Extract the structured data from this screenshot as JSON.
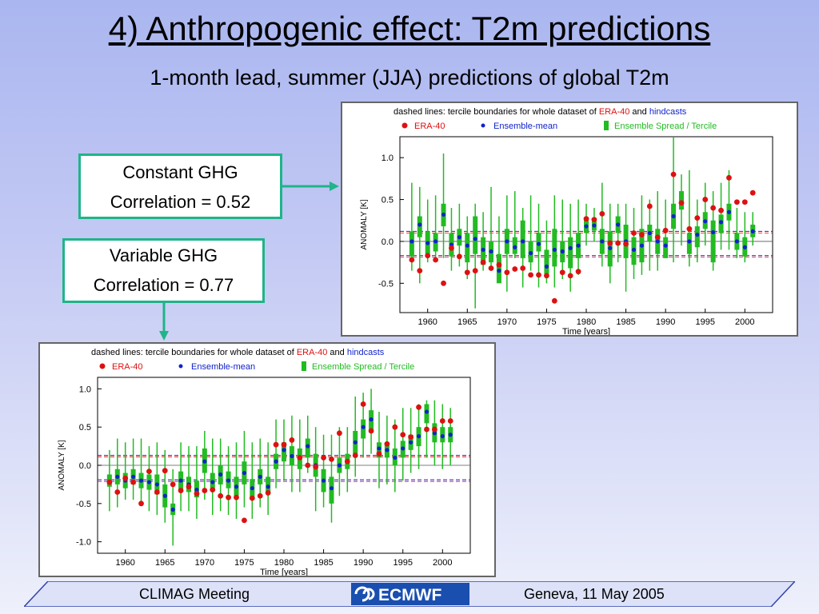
{
  "slide": {
    "title": "4) Anthropogenic effect: T2m predictions",
    "subtitle": "1-month lead, summer (JJA) predictions of global T2m",
    "box_constant": {
      "line1": "Constant GHG",
      "line2": "Correlation = 0.52"
    },
    "box_variable": {
      "line1": "Variable GHG",
      "line2": "Correlation = 0.77"
    },
    "footer": {
      "left": "CLIMAG Meeting",
      "logo": "ECMWF",
      "right": "Geneva, 11 May 2005"
    }
  },
  "colors": {
    "accent_teal": "#1fb489",
    "era40": "#dd1111",
    "ensemble_mean": "#1122cc",
    "spread": "#22bb22"
  },
  "chart_data": [
    {
      "type": "scatter",
      "header_prefix": "dashed lines: tercile boundaries for whole dataset of",
      "header_era": "ERA-40",
      "header_and": "and",
      "header_hindcasts": "hindcasts",
      "legend": [
        "ERA-40",
        "Ensemble-mean",
        "Ensemble Spread / Tercile"
      ],
      "xlabel": "Time [years]",
      "ylabel": "ANOMALY [K]",
      "xlim": [
        1956.5,
        2003.5
      ],
      "ylim": [
        -0.85,
        1.25
      ],
      "yticks": [
        -0.5,
        0.0,
        0.5,
        1.0
      ],
      "ytick_labels": [
        "-0.5",
        "0.0",
        "0.5",
        "1.0"
      ],
      "xticks": [
        1960,
        1965,
        1970,
        1975,
        1980,
        1985,
        1990,
        1995,
        2000
      ],
      "tercile_lines": [
        0.12,
        -0.17
      ],
      "series": [
        {
          "name": "ERA-40",
          "x": [
            1958,
            1959,
            1960,
            1961,
            1962,
            1963,
            1964,
            1965,
            1966,
            1967,
            1968,
            1969,
            1970,
            1971,
            1972,
            1973,
            1974,
            1975,
            1976,
            1977,
            1978,
            1979,
            1980,
            1981,
            1982,
            1983,
            1984,
            1985,
            1986,
            1987,
            1988,
            1989,
            1990,
            1991,
            1992,
            1993,
            1994,
            1995,
            1996,
            1997,
            1998,
            1999,
            2000,
            2001
          ],
          "y": [
            -0.22,
            -0.35,
            -0.17,
            -0.22,
            -0.5,
            -0.08,
            -0.18,
            -0.37,
            -0.35,
            -0.25,
            -0.32,
            -0.28,
            -0.37,
            -0.33,
            -0.32,
            -0.4,
            -0.4,
            -0.41,
            -0.71,
            -0.37,
            -0.41,
            -0.36,
            0.27,
            0.26,
            0.33,
            -0.02,
            -0.02,
            -0.03,
            0.1,
            0.08,
            0.42,
            0.05,
            0.13,
            0.8,
            0.46,
            0.15,
            0.28,
            0.5,
            0.4,
            0.37,
            0.76,
            0.47,
            0.47,
            0.58
          ]
        },
        {
          "name": "Ensemble-mean",
          "x": [
            1958,
            1959,
            1960,
            1961,
            1962,
            1963,
            1964,
            1965,
            1966,
            1967,
            1968,
            1969,
            1970,
            1971,
            1972,
            1973,
            1974,
            1975,
            1976,
            1977,
            1978,
            1979,
            1980,
            1981,
            1982,
            1983,
            1984,
            1985,
            1986,
            1987,
            1988,
            1989,
            1990,
            1991,
            1992,
            1993,
            1994,
            1995,
            1996,
            1997,
            1998,
            1999,
            2000,
            2001
          ],
          "y": [
            0.0,
            0.2,
            -0.02,
            0.0,
            0.32,
            -0.04,
            0.05,
            -0.05,
            0.03,
            -0.1,
            -0.12,
            -0.35,
            0.0,
            -0.07,
            0.0,
            -0.14,
            -0.03,
            -0.3,
            -0.1,
            -0.12,
            -0.08,
            -0.05,
            0.18,
            0.19,
            0.0,
            -0.08,
            0.2,
            0.0,
            -0.1,
            -0.05,
            0.1,
            0.0,
            -0.05,
            0.3,
            0.46,
            0.0,
            0.08,
            0.24,
            0.11,
            0.23,
            0.35,
            0.0,
            -0.07,
            0.12
          ]
        },
        {
          "name": "Ensemble Spread / Tercile",
          "x": [
            1958,
            1959,
            1960,
            1961,
            1962,
            1963,
            1964,
            1965,
            1966,
            1967,
            1968,
            1969,
            1970,
            1971,
            1972,
            1973,
            1974,
            1975,
            1976,
            1977,
            1978,
            1979,
            1980,
            1981,
            1982,
            1983,
            1984,
            1985,
            1986,
            1987,
            1988,
            1989,
            1990,
            1991,
            1992,
            1993,
            1994,
            1995,
            1996,
            1997,
            1998,
            1999,
            2000,
            2001
          ],
          "low": [
            -0.35,
            -0.5,
            -0.25,
            -0.2,
            -0.2,
            -0.35,
            -0.3,
            -0.45,
            -0.8,
            -0.35,
            -0.35,
            -0.45,
            -0.6,
            -0.2,
            -0.55,
            -0.35,
            -0.55,
            -0.5,
            -0.55,
            -0.45,
            -0.6,
            -0.4,
            -0.05,
            0.0,
            -0.3,
            -0.5,
            -0.25,
            -0.6,
            -0.45,
            -0.4,
            -0.35,
            -0.35,
            -0.1,
            -0.25,
            -0.05,
            -0.3,
            -0.25,
            -0.05,
            -0.35,
            -0.1,
            -0.1,
            -0.2,
            -0.25,
            -0.05
          ],
          "q_low": [
            -0.18,
            0.05,
            -0.15,
            -0.12,
            0.18,
            -0.18,
            -0.05,
            -0.25,
            -0.15,
            -0.28,
            -0.25,
            -0.5,
            -0.15,
            -0.15,
            -0.2,
            -0.25,
            -0.12,
            -0.4,
            -0.3,
            -0.25,
            -0.32,
            -0.2,
            0.1,
            0.13,
            -0.15,
            -0.3,
            0.1,
            -0.2,
            -0.28,
            -0.25,
            0.0,
            -0.15,
            -0.2,
            0.15,
            0.38,
            -0.15,
            -0.07,
            0.15,
            -0.25,
            0.1,
            0.25,
            -0.1,
            -0.18,
            0.05
          ],
          "q_high": [
            0.12,
            0.3,
            0.12,
            0.1,
            0.45,
            0.1,
            0.15,
            0.1,
            0.3,
            0.05,
            0.0,
            -0.15,
            0.15,
            0.05,
            0.25,
            0.0,
            0.1,
            -0.1,
            0.15,
            0.0,
            0.05,
            0.1,
            0.28,
            0.28,
            0.15,
            0.12,
            0.3,
            0.2,
            0.05,
            0.15,
            0.2,
            0.15,
            0.05,
            0.45,
            0.6,
            0.1,
            0.18,
            0.35,
            0.25,
            0.32,
            0.45,
            0.1,
            0.05,
            0.2
          ],
          "high": [
            0.7,
            0.65,
            0.5,
            0.55,
            1.05,
            0.4,
            0.45,
            0.3,
            0.45,
            0.35,
            0.65,
            0.3,
            0.55,
            0.6,
            0.4,
            0.55,
            0.45,
            0.25,
            0.55,
            0.5,
            0.45,
            0.5,
            0.45,
            0.4,
            0.7,
            0.45,
            0.45,
            0.45,
            0.4,
            0.55,
            0.5,
            0.6,
            0.5,
            1.25,
            0.8,
            0.85,
            0.5,
            0.7,
            0.6,
            0.7,
            0.85,
            0.4,
            0.35,
            0.35
          ]
        }
      ]
    },
    {
      "type": "scatter",
      "header_prefix": "dashed lines: tercile boundaries for whole dataset of",
      "header_era": "ERA-40",
      "header_and": "and",
      "header_hindcasts": "hindcasts",
      "legend": [
        "ERA-40",
        "Ensemble-mean",
        "Ensemble Spread / Tercile"
      ],
      "xlabel": "Time [years]",
      "ylabel": "ANOMALY [K]",
      "xlim": [
        1956.5,
        2003.5
      ],
      "ylim": [
        -1.15,
        1.15
      ],
      "yticks": [
        -1.0,
        -0.5,
        0.0,
        0.5,
        1.0
      ],
      "ytick_labels": [
        "-1.0",
        "-0.5",
        "0.0",
        "0.5",
        "1.0"
      ],
      "xticks": [
        1960,
        1965,
        1970,
        1975,
        1980,
        1985,
        1990,
        1995,
        2000
      ],
      "tercile_lines": [
        0.13,
        -0.19
      ],
      "series": [
        {
          "name": "ERA-40",
          "x": [
            1958,
            1959,
            1960,
            1961,
            1962,
            1963,
            1964,
            1965,
            1966,
            1967,
            1968,
            1969,
            1970,
            1971,
            1972,
            1973,
            1974,
            1975,
            1976,
            1977,
            1978,
            1979,
            1980,
            1981,
            1982,
            1983,
            1984,
            1985,
            1986,
            1987,
            1988,
            1989,
            1990,
            1991,
            1992,
            1993,
            1994,
            1995,
            1996,
            1997,
            1998,
            1999,
            2000,
            2001
          ],
          "y": [
            -0.22,
            -0.35,
            -0.17,
            -0.22,
            -0.5,
            -0.08,
            -0.35,
            -0.07,
            -0.25,
            -0.33,
            -0.28,
            -0.37,
            -0.33,
            -0.32,
            -0.4,
            -0.42,
            -0.42,
            -0.72,
            -0.43,
            -0.4,
            -0.36,
            0.27,
            0.27,
            0.33,
            0.1,
            0.0,
            -0.02,
            0.1,
            0.08,
            0.42,
            0.05,
            0.13,
            0.8,
            0.45,
            0.15,
            0.28,
            0.5,
            0.4,
            0.37,
            0.76,
            0.47,
            0.47,
            0.58,
            0.58
          ]
        },
        {
          "name": "Ensemble-mean",
          "x": [
            1958,
            1959,
            1960,
            1961,
            1962,
            1963,
            1964,
            1965,
            1966,
            1967,
            1968,
            1969,
            1970,
            1971,
            1972,
            1973,
            1974,
            1975,
            1976,
            1977,
            1978,
            1979,
            1980,
            1981,
            1982,
            1983,
            1984,
            1985,
            1986,
            1987,
            1988,
            1989,
            1990,
            1991,
            1992,
            1993,
            1994,
            1995,
            1996,
            1997,
            1998,
            1999,
            2000,
            2001
          ],
          "y": [
            -0.22,
            -0.15,
            -0.2,
            -0.15,
            -0.2,
            -0.22,
            -0.25,
            -0.4,
            -0.58,
            -0.2,
            -0.25,
            -0.32,
            0.05,
            -0.22,
            -0.12,
            -0.2,
            -0.28,
            -0.1,
            -0.3,
            -0.15,
            -0.28,
            0.05,
            0.2,
            0.12,
            0.1,
            0.25,
            0.0,
            -0.2,
            -0.3,
            0.0,
            0.05,
            0.3,
            0.5,
            0.6,
            0.22,
            0.2,
            0.1,
            0.22,
            0.3,
            0.38,
            0.7,
            0.42,
            0.38,
            0.4
          ]
        },
        {
          "name": "Ensemble Spread / Tercile",
          "x": [
            1958,
            1959,
            1960,
            1961,
            1962,
            1963,
            1964,
            1965,
            1966,
            1967,
            1968,
            1969,
            1970,
            1971,
            1972,
            1973,
            1974,
            1975,
            1976,
            1977,
            1978,
            1979,
            1980,
            1981,
            1982,
            1983,
            1984,
            1985,
            1986,
            1987,
            1988,
            1989,
            1990,
            1991,
            1992,
            1993,
            1994,
            1995,
            1996,
            1997,
            1998,
            1999,
            2000,
            2001
          ],
          "low": [
            -0.6,
            -0.55,
            -0.45,
            -0.45,
            -0.5,
            -0.6,
            -0.65,
            -0.75,
            -1.05,
            -0.6,
            -0.6,
            -0.7,
            -0.45,
            -0.65,
            -0.6,
            -0.65,
            -0.7,
            -0.55,
            -0.7,
            -0.55,
            -0.65,
            -0.3,
            -0.2,
            -0.35,
            -0.35,
            -0.1,
            -0.6,
            -0.55,
            -0.75,
            -0.4,
            -0.35,
            -0.15,
            0.1,
            0.15,
            -0.3,
            -0.25,
            -0.35,
            -0.2,
            -0.1,
            -0.05,
            0.1,
            0.0,
            -0.05,
            0.0
          ],
          "q_low": [
            -0.28,
            -0.25,
            -0.3,
            -0.25,
            -0.3,
            -0.32,
            -0.38,
            -0.55,
            -0.65,
            -0.32,
            -0.35,
            -0.42,
            -0.1,
            -0.32,
            -0.25,
            -0.3,
            -0.4,
            -0.25,
            -0.42,
            -0.25,
            -0.38,
            -0.05,
            0.05,
            0.0,
            -0.05,
            0.1,
            -0.15,
            -0.35,
            -0.5,
            -0.1,
            -0.05,
            0.15,
            0.35,
            0.45,
            0.1,
            0.1,
            0.0,
            0.1,
            0.2,
            0.25,
            0.55,
            0.3,
            0.3,
            0.3
          ],
          "q_high": [
            -0.12,
            -0.05,
            -0.1,
            -0.05,
            -0.1,
            -0.12,
            -0.12,
            -0.25,
            -0.5,
            -0.08,
            -0.15,
            -0.2,
            0.22,
            -0.1,
            0.0,
            -0.08,
            -0.15,
            0.05,
            -0.18,
            -0.05,
            -0.15,
            0.15,
            0.3,
            0.25,
            0.22,
            0.35,
            0.15,
            -0.05,
            -0.15,
            0.1,
            0.15,
            0.45,
            0.6,
            0.72,
            0.3,
            0.3,
            0.22,
            0.32,
            0.4,
            0.5,
            0.8,
            0.55,
            0.5,
            0.5
          ],
          "high": [
            0.2,
            0.35,
            0.3,
            0.35,
            0.35,
            0.25,
            0.3,
            0.2,
            -0.05,
            0.3,
            0.25,
            0.25,
            0.45,
            0.35,
            0.35,
            0.25,
            0.3,
            0.45,
            0.3,
            0.35,
            0.3,
            0.6,
            0.6,
            0.65,
            0.6,
            0.65,
            0.5,
            0.4,
            0.4,
            0.5,
            0.5,
            0.9,
            0.95,
            1.0,
            0.7,
            0.65,
            0.6,
            0.75,
            0.75,
            0.8,
            0.85,
            0.85,
            0.8,
            0.75
          ]
        }
      ]
    }
  ]
}
